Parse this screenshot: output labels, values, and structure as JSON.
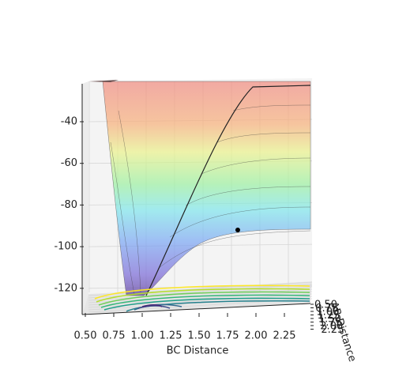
{
  "chart_data": {
    "type": "surface3d",
    "x_label": "BC Distance",
    "y_label": "AB Distance",
    "xlim": [
      0.5,
      2.4
    ],
    "xticks": [
      {
        "value": 0.5,
        "label": "0.50"
      },
      0.75,
      {
        "value": 1.0,
        "label": "1.00"
      },
      1.25,
      {
        "value": 1.5,
        "label": "1.50"
      },
      1.75,
      {
        "value": 2.0,
        "label": "2.00"
      },
      2.25
    ],
    "yticks": [
      {
        "value": 0.5,
        "label": "0.50"
      },
      0.75,
      {
        "value": 1.0,
        "label": "1.00"
      },
      1.25,
      {
        "value": 1.5,
        "label": "1.50"
      },
      1.75,
      {
        "value": 2.0,
        "label": "2.00"
      },
      2.25
    ],
    "zlim": [
      -130,
      -20
    ],
    "zticks": [
      -40,
      -60,
      -80,
      -100,
      -120
    ],
    "series": [
      {
        "x": [
          1.84
        ],
        "values": [
          -92
        ],
        "color": "#000000"
      }
    ]
  }
}
